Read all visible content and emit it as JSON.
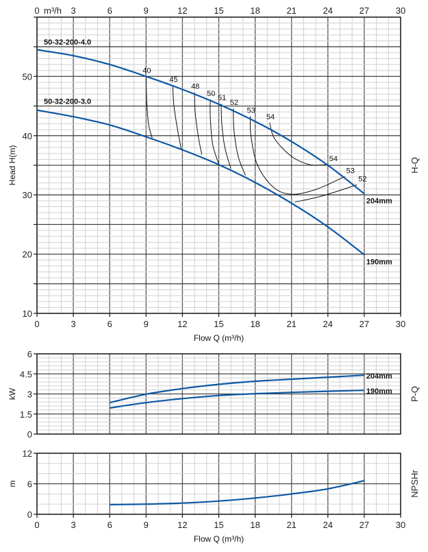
{
  "chart_data": [
    {
      "type": "line",
      "name": "H-Q",
      "panel_label": "H-Q",
      "xlabel": "Flow Q (m³/h)",
      "top_axis_unit": "m³/h",
      "ylabel": "Head H(m)",
      "xlim": [
        0,
        30
      ],
      "ylim": [
        10,
        60
      ],
      "xticks": [
        0,
        3,
        6,
        9,
        12,
        15,
        18,
        21,
        24,
        27,
        30
      ],
      "yticks": [
        10,
        20,
        30,
        40,
        50
      ],
      "grid": true,
      "model_labels": [
        "50-32-200-4.0",
        "50-32-200-3.0"
      ],
      "series": [
        {
          "name": "204mm",
          "color": "#0b57a4",
          "x": [
            0,
            3,
            6,
            9,
            12,
            15,
            18,
            21,
            24,
            27
          ],
          "y": [
            54.5,
            53.5,
            52.0,
            50.0,
            47.8,
            45.3,
            42.4,
            39.0,
            35.0,
            30.2
          ]
        },
        {
          "name": "190mm",
          "color": "#0b57a4",
          "x": [
            0,
            3,
            6,
            9,
            12,
            15,
            18,
            21,
            24,
            27
          ],
          "y": [
            44.3,
            43.2,
            41.8,
            39.8,
            37.6,
            35.1,
            32.1,
            28.6,
            24.6,
            19.9
          ]
        }
      ],
      "efficiency_contours": [
        {
          "label": "40",
          "label_at": "start",
          "points": [
            [
              9,
              50
            ],
            [
              9.05,
              46
            ],
            [
              9.2,
              42
            ],
            [
              9.5,
              39.6
            ]
          ]
        },
        {
          "label": "45",
          "label_at": "start",
          "points": [
            [
              11.2,
              48.5
            ],
            [
              11.3,
              45
            ],
            [
              11.6,
              41
            ],
            [
              11.9,
              37.8
            ]
          ]
        },
        {
          "label": "48",
          "label_at": "start",
          "points": [
            [
              13,
              47.3
            ],
            [
              13.05,
              44
            ],
            [
              13.3,
              40
            ],
            [
              13.6,
              36.8
            ]
          ]
        },
        {
          "label": "50",
          "label_at": "start",
          "points": [
            [
              14.3,
              46.1
            ],
            [
              14.3,
              43
            ],
            [
              14.5,
              38.5
            ],
            [
              15,
              35.2
            ]
          ]
        },
        {
          "label": "51",
          "label_at": "start",
          "points": [
            [
              15.2,
              45.4
            ],
            [
              15.25,
              42
            ],
            [
              15.5,
              38
            ],
            [
              16,
              34.4
            ]
          ]
        },
        {
          "label": "52",
          "label_at": "start",
          "points": [
            [
              16.2,
              44.6
            ],
            [
              16.25,
              41
            ],
            [
              16.6,
              36.5
            ],
            [
              17.2,
              33.3
            ]
          ]
        },
        {
          "label": "53",
          "label_at": "start",
          "points": [
            [
              17.6,
              43.3
            ],
            [
              17.65,
              40
            ],
            [
              18.2,
              35
            ],
            [
              19.5,
              31.3
            ],
            [
              21,
              30.1
            ],
            [
              23,
              30.9
            ],
            [
              25.4,
              33.1
            ]
          ]
        },
        {
          "label": "54",
          "label_at": "start",
          "points": [
            [
              19.2,
              42.2
            ],
            [
              19.6,
              39.5
            ],
            [
              21,
              36.5
            ],
            [
              22.5,
              35.1
            ],
            [
              24,
              35.1
            ]
          ]
        },
        {
          "label": "54",
          "label_at": "end",
          "points": [
            [
              24,
              35.1
            ],
            [
              24,
              35.1
            ]
          ]
        },
        {
          "label": "53",
          "label_at": "end",
          "points": [
            [
              25.4,
              33.1
            ],
            [
              25.4,
              33.1
            ]
          ]
        },
        {
          "label": "52",
          "label_at": "end",
          "points": [
            [
              21.3,
              28.8
            ],
            [
              23.5,
              29.8
            ],
            [
              26.4,
              31.7
            ]
          ]
        }
      ]
    },
    {
      "type": "line",
      "name": "P-Q",
      "panel_label": "P-Q",
      "ylabel": "kW",
      "xlim": [
        0,
        30
      ],
      "ylim": [
        0,
        6
      ],
      "yticks": [
        0,
        1.5,
        3,
        4.5,
        6
      ],
      "yticklabels": [
        "0",
        "1.5",
        "3",
        "4.5",
        "6"
      ],
      "grid": true,
      "series": [
        {
          "name": "204mm",
          "color": "#0b57a4",
          "x": [
            6,
            9,
            12,
            15,
            18,
            21,
            24,
            27
          ],
          "y": [
            2.35,
            2.98,
            3.4,
            3.72,
            3.95,
            4.1,
            4.25,
            4.4
          ]
        },
        {
          "name": "190mm",
          "color": "#0b57a4",
          "x": [
            6,
            9,
            12,
            15,
            18,
            21,
            24,
            27
          ],
          "y": [
            1.95,
            2.35,
            2.65,
            2.88,
            3.02,
            3.12,
            3.2,
            3.27
          ]
        }
      ]
    },
    {
      "type": "line",
      "name": "NPSHr",
      "panel_label": "NPSHr",
      "xlabel": "Flow Q (m³/h)",
      "ylabel": "m",
      "xlim": [
        0,
        30
      ],
      "ylim": [
        0,
        12
      ],
      "xticks": [
        0,
        3,
        6,
        9,
        12,
        15,
        18,
        21,
        24,
        27,
        30
      ],
      "yticks": [
        0,
        6,
        12
      ],
      "grid": true,
      "series": [
        {
          "name": "NPSHr",
          "color": "#0b57a4",
          "x": [
            6,
            9,
            12,
            15,
            18,
            21,
            24,
            27
          ],
          "y": [
            1.9,
            2.0,
            2.2,
            2.6,
            3.2,
            4.0,
            5.0,
            6.6
          ]
        }
      ]
    }
  ]
}
